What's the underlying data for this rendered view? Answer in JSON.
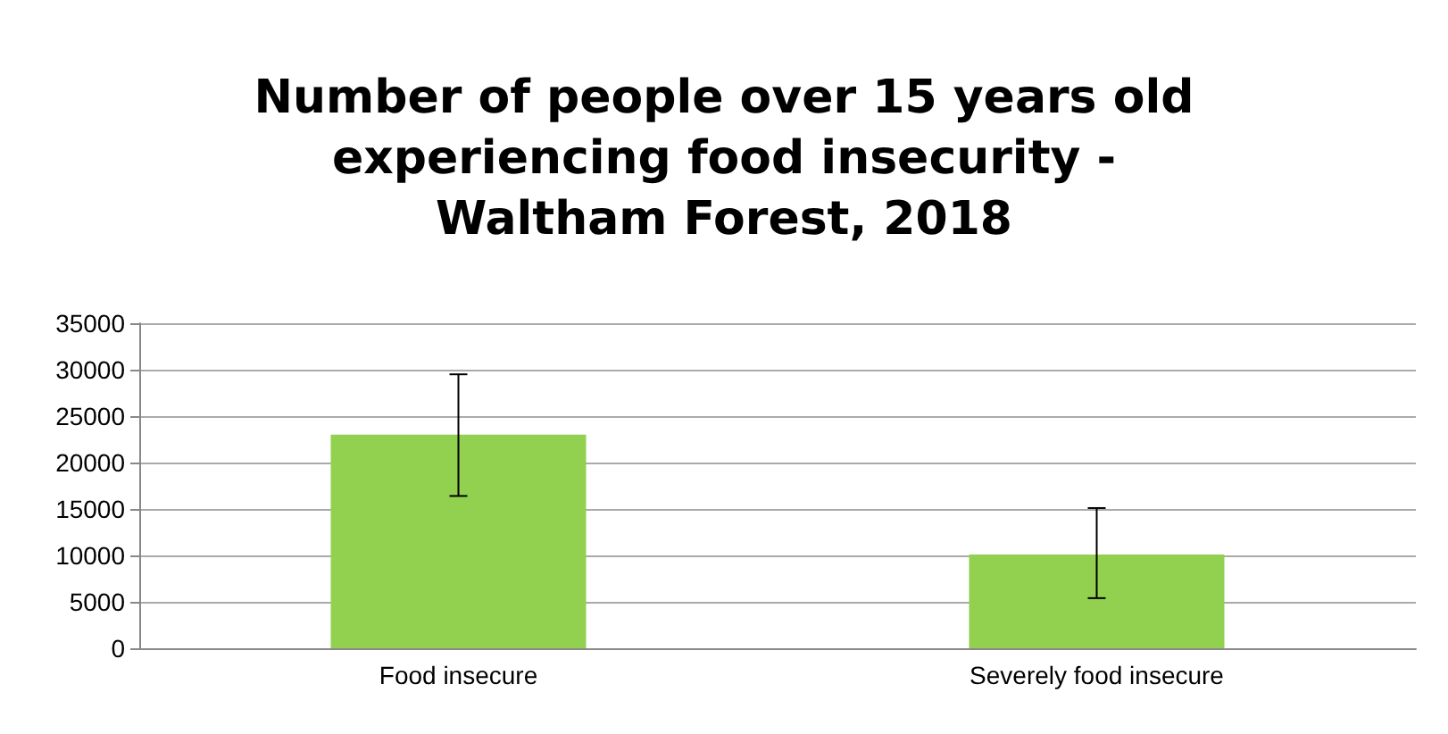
{
  "chart_data": {
    "type": "bar",
    "title": "Number of people over 15 years old\nexperiencing food insecurity -\nWaltham Forest, 2018",
    "categories": [
      "Food insecure",
      "Severely food insecure"
    ],
    "values": [
      23000,
      10100
    ],
    "errors": [
      [
        16400,
        29500
      ],
      [
        5400,
        15100
      ]
    ],
    "color": "#92d050",
    "ylim": [
      0,
      35000
    ],
    "yticks": [
      0,
      5000,
      10000,
      15000,
      20000,
      25000,
      30000,
      35000
    ],
    "grid": "y"
  }
}
